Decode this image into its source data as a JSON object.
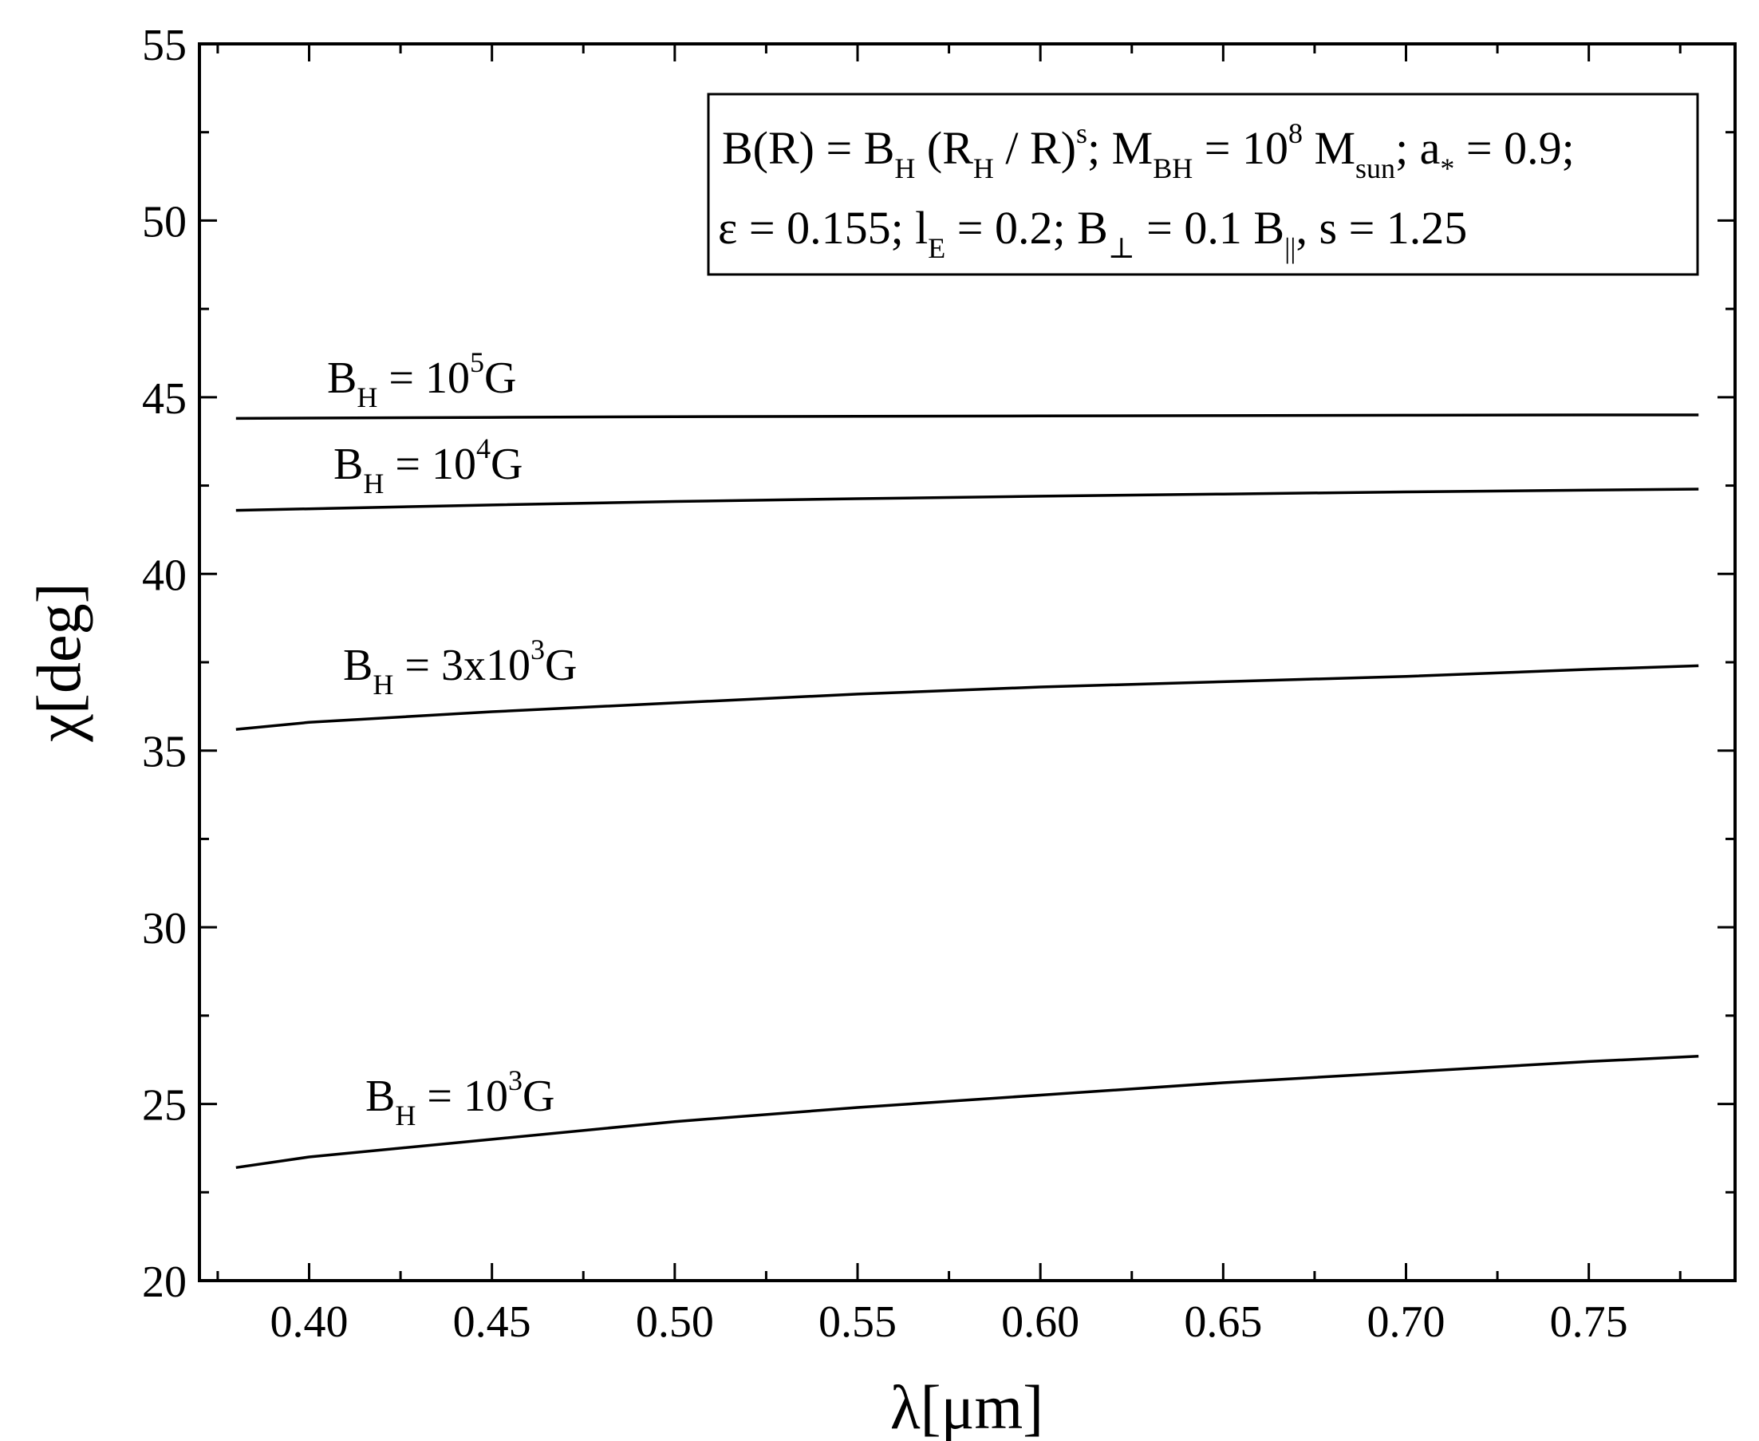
{
  "chart_data": {
    "type": "line",
    "xlabel": "λ[μm]",
    "ylabel": "χ[deg]",
    "xlim": [
      0.37,
      0.79
    ],
    "ylim": [
      20,
      55
    ],
    "x_ticks": [
      0.4,
      0.45,
      0.5,
      0.55,
      0.6,
      0.65,
      0.7,
      0.75
    ],
    "x_tick_labels": [
      "0.40",
      "0.45",
      "0.50",
      "0.55",
      "0.60",
      "0.65",
      "0.70",
      "0.75"
    ],
    "y_ticks": [
      20,
      25,
      30,
      35,
      40,
      45,
      50,
      55
    ],
    "y_tick_labels": [
      "20",
      "25",
      "30",
      "35",
      "40",
      "45",
      "50",
      "55"
    ],
    "grid": false,
    "legend_box": {
      "placement": "top-right",
      "line1": {
        "a": "B(R) = B",
        "a_sub": "H",
        "b": " (R",
        "b_sub": "H",
        "c": " / R)",
        "c_sup": "s",
        "d": "; M",
        "d_sub": "BH",
        "e": " = 10",
        "e_sup": "8",
        "f": " M",
        "f_sub": "sun",
        "g": "; a",
        "g_sub": "*",
        "h": " = 0.9;"
      },
      "line2": {
        "a": "ε = 0.155; l",
        "a_sub": "E",
        "b": " = 0.2; B",
        "b_sub": "⊥",
        "c": " = 0.1 B",
        "c_sub": "||",
        "d": ", s = 1.25"
      }
    },
    "series": [
      {
        "label_main": "B",
        "label_sub": "H",
        "label_rest": " = 10",
        "label_sup": "5",
        "label_unit": "G",
        "x": [
          0.38,
          0.45,
          0.5,
          0.55,
          0.6,
          0.65,
          0.7,
          0.75,
          0.78
        ],
        "y": [
          44.4,
          44.43,
          44.45,
          44.46,
          44.47,
          44.48,
          44.49,
          44.5,
          44.5
        ]
      },
      {
        "label_main": "B",
        "label_sub": "H",
        "label_rest": " = 10",
        "label_sup": "4",
        "label_unit": "G",
        "x": [
          0.38,
          0.45,
          0.5,
          0.55,
          0.6,
          0.65,
          0.7,
          0.75,
          0.78
        ],
        "y": [
          41.8,
          41.95,
          42.05,
          42.13,
          42.2,
          42.26,
          42.32,
          42.37,
          42.4
        ]
      },
      {
        "label_main": "B",
        "label_sub": "H",
        "label_rest": " = 3x10",
        "label_sup": "3",
        "label_unit": "G",
        "x": [
          0.38,
          0.4,
          0.45,
          0.5,
          0.55,
          0.6,
          0.65,
          0.7,
          0.75,
          0.78
        ],
        "y": [
          35.6,
          35.8,
          36.1,
          36.35,
          36.6,
          36.8,
          36.95,
          37.1,
          37.3,
          37.4
        ]
      },
      {
        "label_main": "B",
        "label_sub": "H",
        "label_rest": " = 10",
        "label_sup": "3",
        "label_unit": "G",
        "x": [
          0.38,
          0.4,
          0.45,
          0.5,
          0.55,
          0.6,
          0.65,
          0.7,
          0.75,
          0.78
        ],
        "y": [
          23.2,
          23.5,
          24.0,
          24.5,
          24.9,
          25.25,
          25.6,
          25.9,
          26.2,
          26.35
        ]
      }
    ]
  }
}
